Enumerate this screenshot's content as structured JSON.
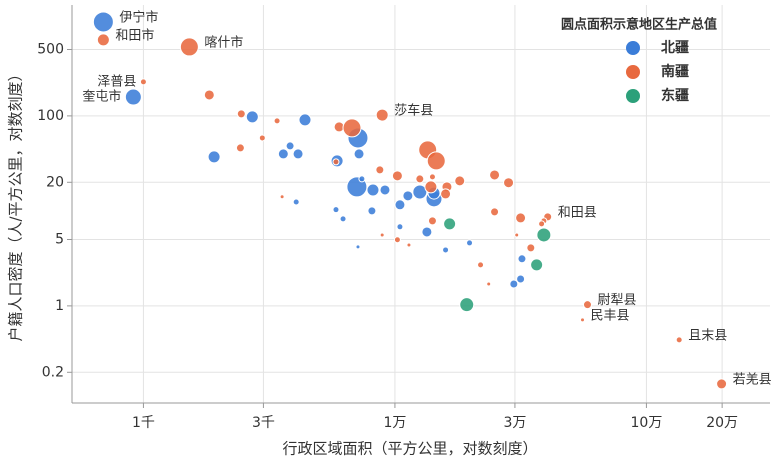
{
  "chart_data": {
    "type": "scatter",
    "x_label": "行政区域面积（平方公里，对数刻度）",
    "y_label": "户籍人口密度（人/平方公里，对数刻度）",
    "legend_title": "圆点面积示意地区生产总值",
    "legend_position": "upper right",
    "xscale": "log",
    "yscale": "log",
    "grid": true,
    "xlim": [
      520,
      310000
    ],
    "ylim": [
      0.095,
      1470
    ],
    "xticks": [
      {
        "value": 1000,
        "label": "1千"
      },
      {
        "value": 3000,
        "label": "3千"
      },
      {
        "value": 10000,
        "label": "1万"
      },
      {
        "value": 30000,
        "label": "3万"
      },
      {
        "value": 100000,
        "label": "10万"
      },
      {
        "value": 200000,
        "label": "20万"
      }
    ],
    "yticks": [
      500,
      100,
      20,
      5,
      1,
      0.2
    ],
    "series": [
      {
        "name": "北疆",
        "color": "#3b7dd8",
        "x": [
          693,
          912,
          2710,
          1910,
          4390,
          3830,
          3600,
          4120,
          7130,
          5890,
          7200,
          7060,
          8180,
          9130,
          7390,
          11260,
          10470,
          12560,
          14300,
          14300,
          5830,
          6220,
          8100,
          10470,
          4050,
          7130,
          13400,
          15900,
          19800,
          32000,
          29700,
          31600
        ],
        "y": [
          975,
          158,
          97.6,
          37,
          90.7,
          48.3,
          39.8,
          39.8,
          58.6,
          33.6,
          39.8,
          17.9,
          16.6,
          16.6,
          21.7,
          14.4,
          11.6,
          15.8,
          13.4,
          15.4,
          10.3,
          8.24,
          10,
          6.8,
          12.4,
          4.18,
          6.0,
          3.88,
          4.6,
          3.13,
          1.7,
          1.92
        ],
        "sizes": [
          1000,
          640,
          360,
          360,
          360,
          160,
          250,
          250,
          1000,
          360,
          250,
          1000,
          360,
          250,
          90,
          250,
          250,
          490,
          640,
          360,
          90,
          90,
          160,
          90,
          90,
          40,
          250,
          90,
          90,
          160,
          160,
          160
        ],
        "labels": [
          "伊宁市",
          "奎屯市",
          null,
          null,
          null,
          null,
          null,
          null,
          null,
          null,
          null,
          null,
          null,
          null,
          null,
          null,
          null,
          null,
          null,
          null,
          null,
          null,
          null,
          null,
          null,
          null,
          null,
          null,
          null,
          null,
          null,
          null
        ]
      },
      {
        "name": "南疆",
        "color": "#e8693f",
        "x": [
          693,
          1523,
          1000,
          1828,
          2450,
          3400,
          2970,
          2430,
          8900,
          6000,
          6750,
          5830,
          8710,
          10230,
          12560,
          13500,
          14600,
          13900,
          16100,
          18100,
          24900,
          28300,
          14100,
          15900,
          3560,
          8900,
          10230,
          11370,
          14100,
          24900,
          31600,
          40500,
          39100,
          38300,
          34700,
          30500,
          21900,
          23600,
          58300,
          55700,
          135000,
          199000
        ],
        "y": [
          631,
          532,
          228,
          166,
          105,
          88.6,
          58.6,
          46,
          102,
          76.6,
          74.8,
          32.8,
          27,
          23.4,
          21.7,
          43.9,
          33.6,
          17.9,
          17.9,
          20.7,
          23.9,
          19.8,
          22.8,
          15.1,
          14.1,
          5.58,
          4.97,
          4.38,
          7.85,
          9.76,
          8.43,
          8.65,
          7.85,
          7.3,
          4.08,
          5.58,
          2.7,
          1.7,
          1.03,
          0.713,
          0.439,
          0.151
        ],
        "sizes": [
          360,
          810,
          90,
          250,
          160,
          90,
          90,
          160,
          360,
          250,
          810,
          90,
          160,
          250,
          160,
          810,
          810,
          360,
          250,
          250,
          250,
          250,
          90,
          250,
          40,
          40,
          90,
          40,
          160,
          160,
          250,
          160,
          90,
          90,
          160,
          40,
          90,
          40,
          160,
          40,
          90,
          250
        ],
        "labels": [
          "和田市",
          "喀什市",
          "泽普县",
          null,
          null,
          null,
          null,
          null,
          "莎车县",
          null,
          null,
          null,
          null,
          null,
          null,
          null,
          null,
          null,
          null,
          null,
          null,
          null,
          null,
          null,
          null,
          null,
          null,
          null,
          null,
          null,
          null,
          "和田县",
          null,
          null,
          null,
          null,
          null,
          null,
          "尉犁县",
          "民丰县",
          "且末县",
          "若羌县"
        ]
      },
      {
        "name": "东疆",
        "color": "#2ca07a",
        "x": [
          16500,
          39100,
          36600,
          19300
        ],
        "y": [
          7.3,
          5.58,
          2.7,
          1.03
        ],
        "sizes": [
          360,
          490,
          360,
          490
        ],
        "labels": [
          null,
          null,
          null,
          null
        ]
      }
    ]
  }
}
